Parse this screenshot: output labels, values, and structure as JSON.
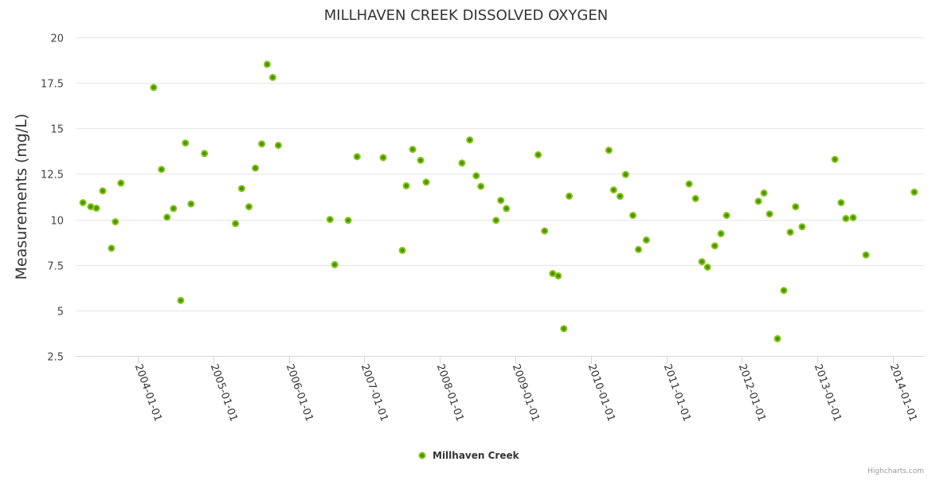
{
  "chart_data": {
    "type": "scatter",
    "title": "MILLHAVEN CREEK DISSOLVED OXYGEN",
    "xlabel": "",
    "ylabel": "Measurements (mg/L)",
    "ylim": [
      2.5,
      20
    ],
    "yticks": [
      2.5,
      5,
      7.5,
      10,
      12.5,
      15,
      17.5,
      20
    ],
    "ytick_labels": [
      "2.5",
      "5",
      "7.5",
      "10",
      "12.5",
      "15",
      "17.5",
      "20"
    ],
    "xlim": [
      "2003-03-07",
      "2014-05-31"
    ],
    "xticks": [
      "2004-01-01",
      "2005-01-01",
      "2006-01-01",
      "2007-01-01",
      "2008-01-01",
      "2009-01-01",
      "2010-01-01",
      "2011-01-01",
      "2012-01-01",
      "2013-01-01",
      "2014-01-01"
    ],
    "grid": true,
    "legend": {
      "position": "bottom-center",
      "entries": [
        "Millhaven Creek"
      ]
    },
    "credits": "Highcharts.com",
    "colors": {
      "marker_fill": "#3f9a00",
      "marker_stroke": "#8cc21a"
    },
    "series": [
      {
        "name": "Millhaven Creek",
        "points": [
          [
            "2003-04-11",
            10.92
          ],
          [
            "2003-05-19",
            10.7
          ],
          [
            "2003-06-15",
            10.62
          ],
          [
            "2003-07-16",
            11.57
          ],
          [
            "2003-08-27",
            8.42
          ],
          [
            "2003-09-15",
            9.87
          ],
          [
            "2003-10-12",
            12.0
          ],
          [
            "2004-03-18",
            17.25
          ],
          [
            "2004-04-25",
            12.75
          ],
          [
            "2004-05-22",
            10.12
          ],
          [
            "2004-06-22",
            10.6
          ],
          [
            "2004-07-27",
            5.55
          ],
          [
            "2004-08-19",
            14.2
          ],
          [
            "2004-09-15",
            10.85
          ],
          [
            "2004-11-19",
            13.62
          ],
          [
            "2005-04-18",
            9.77
          ],
          [
            "2005-05-18",
            11.7
          ],
          [
            "2005-06-22",
            10.7
          ],
          [
            "2005-07-23",
            12.82
          ],
          [
            "2005-08-23",
            14.15
          ],
          [
            "2005-09-18",
            18.52
          ],
          [
            "2005-10-15",
            17.8
          ],
          [
            "2005-11-11",
            14.07
          ],
          [
            "2006-07-19",
            10.0
          ],
          [
            "2006-08-11",
            7.52
          ],
          [
            "2006-10-15",
            9.95
          ],
          [
            "2006-11-27",
            13.45
          ],
          [
            "2007-04-02",
            13.4
          ],
          [
            "2007-07-04",
            8.3
          ],
          [
            "2007-07-23",
            11.85
          ],
          [
            "2007-08-23",
            13.85
          ],
          [
            "2007-09-30",
            13.25
          ],
          [
            "2007-10-27",
            12.05
          ],
          [
            "2008-04-17",
            13.1
          ],
          [
            "2008-05-25",
            14.37
          ],
          [
            "2008-06-25",
            12.4
          ],
          [
            "2008-07-18",
            11.82
          ],
          [
            "2008-09-29",
            9.95
          ],
          [
            "2008-10-22",
            11.05
          ],
          [
            "2008-11-18",
            10.6
          ],
          [
            "2009-04-21",
            13.55
          ],
          [
            "2009-05-22",
            9.37
          ],
          [
            "2009-06-30",
            7.03
          ],
          [
            "2009-07-27",
            6.9
          ],
          [
            "2009-08-23",
            4.0
          ],
          [
            "2009-09-18",
            11.28
          ],
          [
            "2010-03-29",
            13.8
          ],
          [
            "2010-04-21",
            11.62
          ],
          [
            "2010-05-22",
            11.27
          ],
          [
            "2010-06-18",
            12.47
          ],
          [
            "2010-07-23",
            10.22
          ],
          [
            "2010-08-19",
            8.35
          ],
          [
            "2010-09-26",
            8.87
          ],
          [
            "2011-04-21",
            11.95
          ],
          [
            "2011-05-22",
            11.15
          ],
          [
            "2011-06-22",
            7.68
          ],
          [
            "2011-07-19",
            7.38
          ],
          [
            "2011-08-23",
            8.55
          ],
          [
            "2011-09-22",
            9.22
          ],
          [
            "2011-10-19",
            10.22
          ],
          [
            "2012-03-21",
            11.0
          ],
          [
            "2012-04-17",
            11.45
          ],
          [
            "2012-05-14",
            10.3
          ],
          [
            "2012-06-21",
            3.45
          ],
          [
            "2012-07-22",
            6.1
          ],
          [
            "2012-08-22",
            9.3
          ],
          [
            "2012-09-17",
            10.7
          ],
          [
            "2012-10-18",
            9.6
          ],
          [
            "2013-03-26",
            13.3
          ],
          [
            "2013-04-25",
            10.92
          ],
          [
            "2013-05-18",
            10.05
          ],
          [
            "2013-06-22",
            10.1
          ],
          [
            "2013-08-23",
            8.05
          ],
          [
            "2014-04-14",
            11.5
          ]
        ]
      }
    ]
  }
}
